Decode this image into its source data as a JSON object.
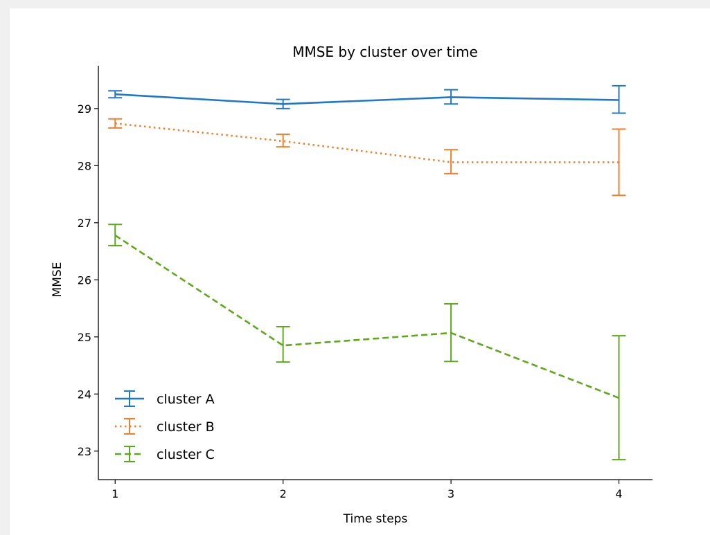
{
  "chart_data": {
    "type": "line",
    "title": "MMSE by cluster over time",
    "xlabel": "Time steps",
    "ylabel": "MMSE",
    "x": [
      1,
      2,
      3,
      4
    ],
    "xlim": [
      0.9,
      4.2
    ],
    "ylim": [
      22.5,
      29.75
    ],
    "xticks": [
      "1",
      "2",
      "3",
      "4"
    ],
    "yticks": [
      "23",
      "24",
      "25",
      "26",
      "27",
      "28",
      "29"
    ],
    "grid": false,
    "legend_position": "lower-left",
    "series": [
      {
        "name": "cluster A",
        "values": [
          29.25,
          29.08,
          29.2,
          29.15
        ],
        "err_low": [
          29.19,
          29.0,
          29.08,
          28.92
        ],
        "err_high": [
          29.31,
          29.16,
          29.33,
          29.4
        ],
        "color": "#1f77c8",
        "style": "solid"
      },
      {
        "name": "cluster B",
        "values": [
          28.74,
          28.43,
          28.06,
          28.06
        ],
        "err_low": [
          28.66,
          28.33,
          27.86,
          27.48
        ],
        "err_high": [
          28.82,
          28.55,
          28.28,
          28.64
        ],
        "color": "#f07f2e",
        "style": "dotted"
      },
      {
        "name": "cluster C",
        "values": [
          26.78,
          24.85,
          25.07,
          23.93
        ],
        "err_low": [
          26.6,
          24.56,
          24.57,
          22.85
        ],
        "err_high": [
          26.97,
          25.18,
          25.58,
          25.02
        ],
        "color": "#5ea81d",
        "style": "dashed"
      }
    ]
  }
}
